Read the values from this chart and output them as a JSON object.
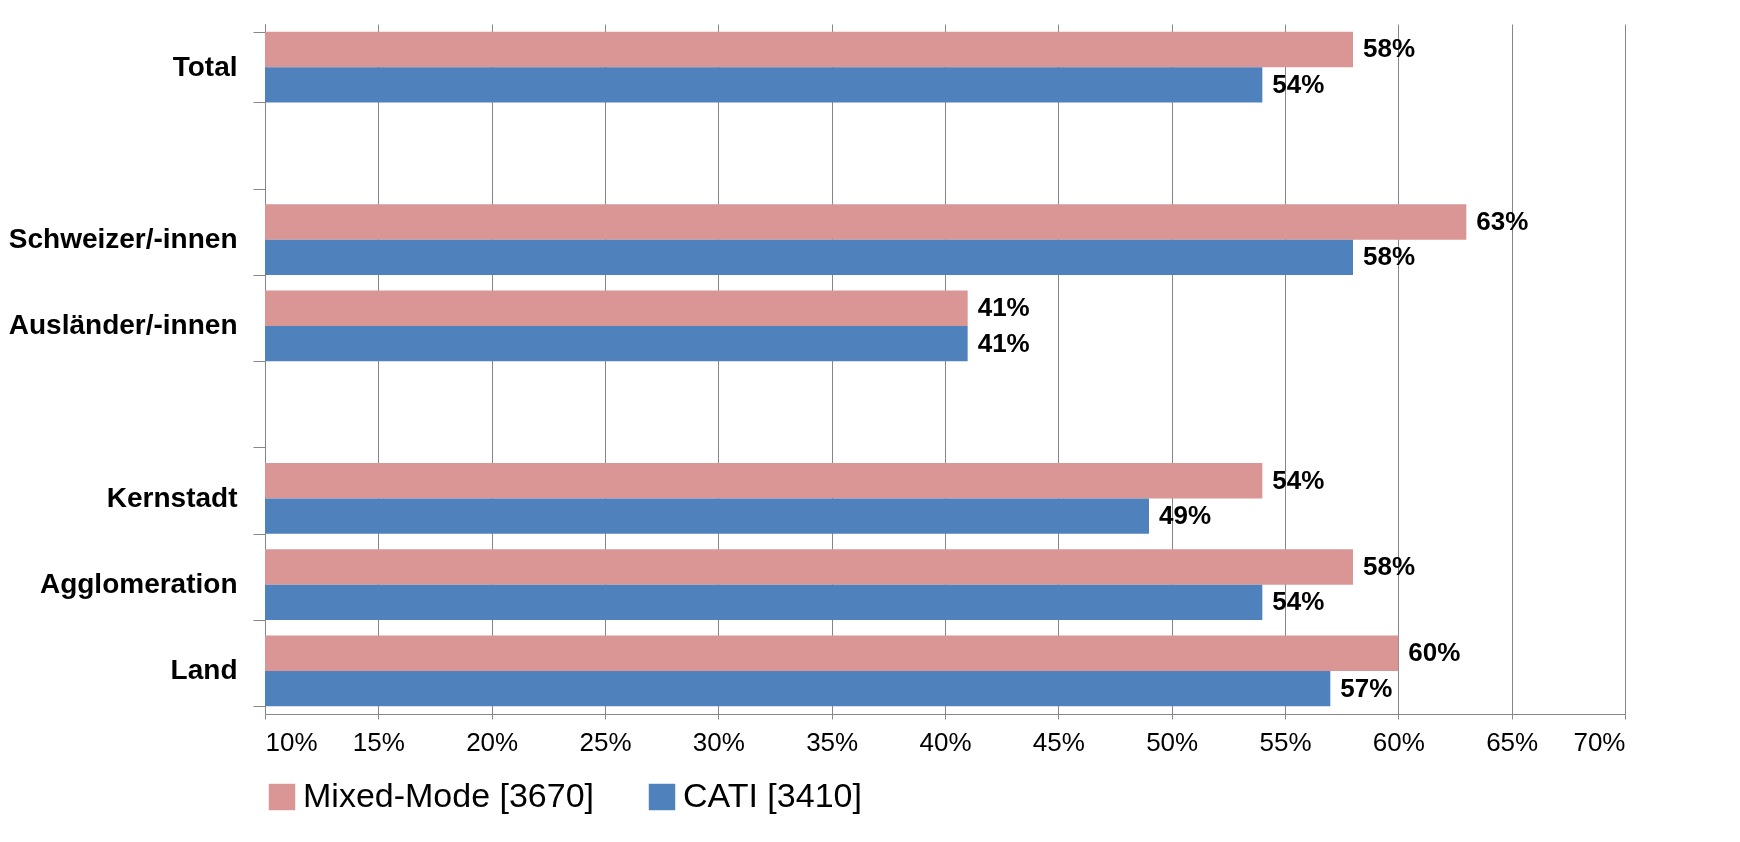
{
  "chart_data": {
    "type": "bar",
    "orientation": "horizontal",
    "categories": [
      "Total",
      null,
      "Schweizer/-innen",
      "Ausländer/-innen",
      null,
      "Kernstadt",
      "Agglomeration",
      "Land"
    ],
    "series": [
      {
        "name": "Mixed-Mode [3670]",
        "color": "#d99694",
        "values": [
          58,
          null,
          63,
          41,
          null,
          54,
          58,
          60
        ],
        "value_labels": [
          "58%",
          null,
          "63%",
          "41%",
          null,
          "54%",
          "58%",
          "60%"
        ]
      },
      {
        "name": "CATI [3410]",
        "color": "#4f81bd",
        "values": [
          54,
          null,
          58,
          41,
          null,
          49,
          54,
          57
        ],
        "value_labels": [
          "54%",
          null,
          "58%",
          "41%",
          null,
          "49%",
          "54%",
          "57%"
        ]
      }
    ],
    "xlim": [
      10,
      70
    ],
    "xticks": [
      {
        "value": 10,
        "label": "10%"
      },
      {
        "value": 15,
        "label": "15%"
      },
      {
        "value": 20,
        "label": "20%"
      },
      {
        "value": 25,
        "label": "25%"
      },
      {
        "value": 30,
        "label": "30%"
      },
      {
        "value": 35,
        "label": "35%"
      },
      {
        "value": 40,
        "label": "40%"
      },
      {
        "value": 45,
        "label": "45%"
      },
      {
        "value": 50,
        "label": "50%"
      },
      {
        "value": 55,
        "label": "55%"
      },
      {
        "value": 60,
        "label": "60%"
      },
      {
        "value": 65,
        "label": "65%"
      },
      {
        "value": 70,
        "label": "70%"
      }
    ],
    "grid": "x",
    "legend": "bottom"
  }
}
